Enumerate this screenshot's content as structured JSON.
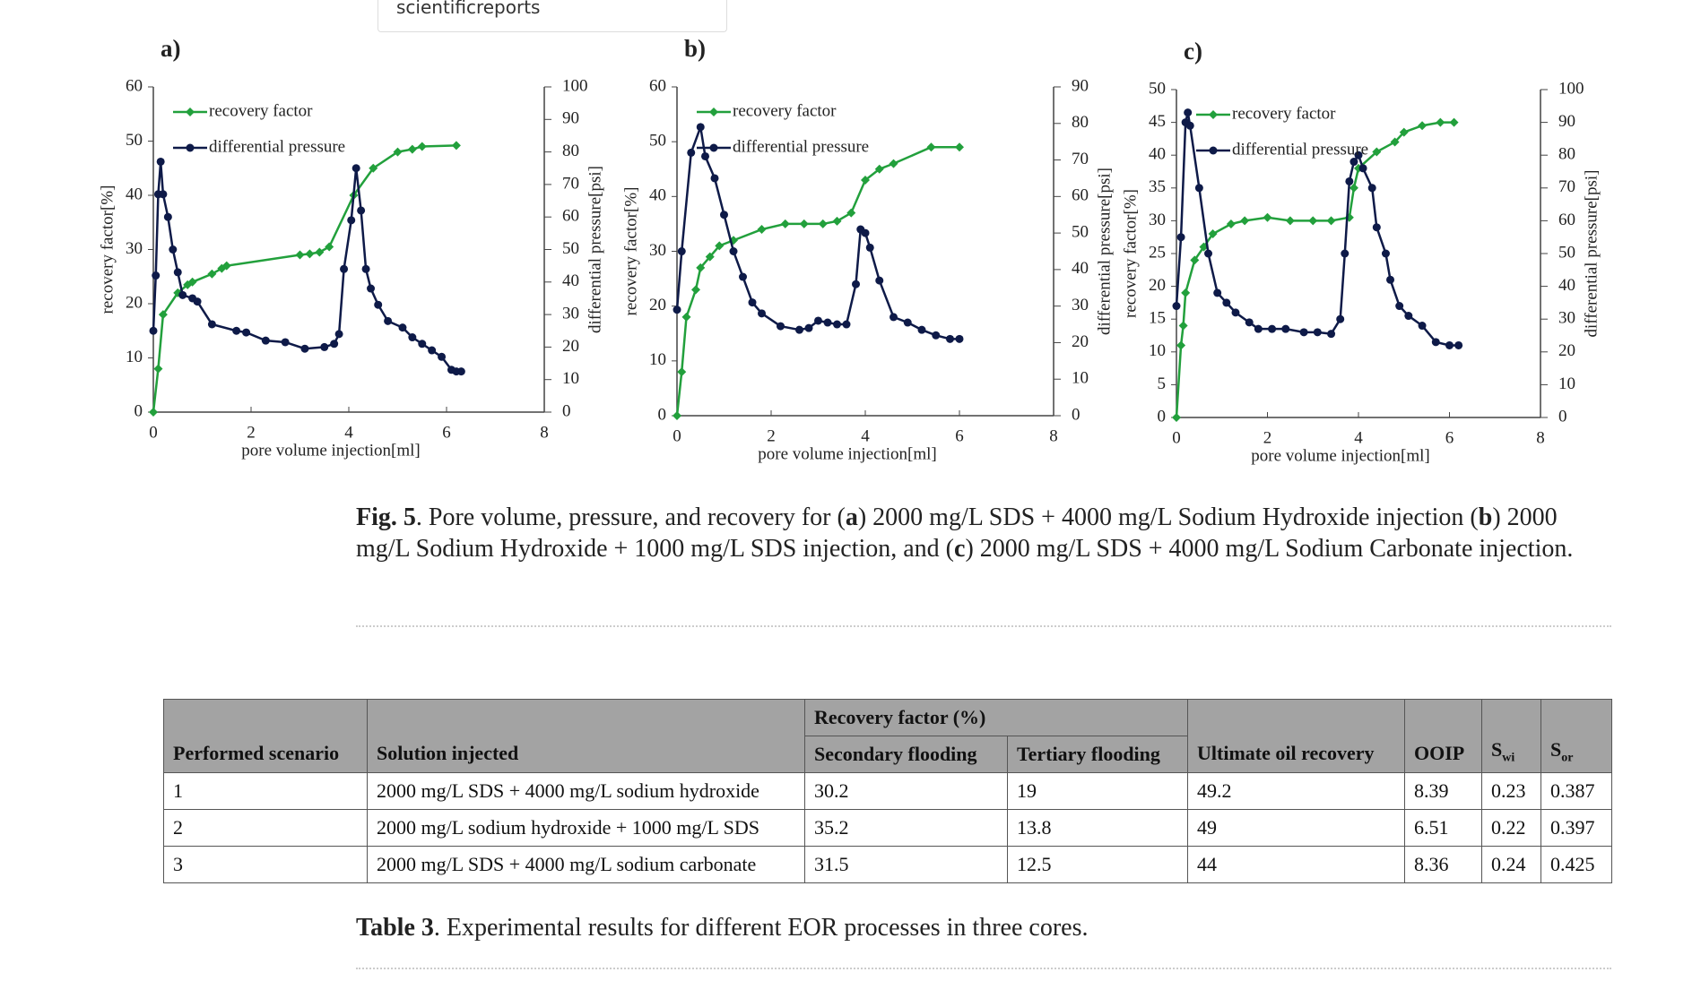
{
  "header": {
    "source": "scientificreports"
  },
  "chart_data": [
    {
      "type": "line",
      "panel": "a)",
      "xlabel": "pore volume injection[ml]",
      "ylabel": "recovery factor[%]",
      "y2label": "differential pressure[psi]",
      "xlim": [
        0,
        8
      ],
      "xticks": [
        0,
        2,
        4,
        6,
        8
      ],
      "ylim": [
        0,
        60
      ],
      "yticks": [
        0,
        10,
        20,
        30,
        40,
        50,
        60
      ],
      "y2lim": [
        0,
        100
      ],
      "y2ticks": [
        0,
        10,
        20,
        30,
        40,
        50,
        60,
        70,
        80,
        90,
        100
      ],
      "legend": "upper left",
      "series": [
        {
          "name": "recovery factor",
          "color": "#22a03c",
          "marker": "diamond",
          "x": [
            0,
            0.1,
            0.2,
            0.5,
            0.7,
            0.8,
            1.2,
            1.4,
            1.5,
            3,
            3.2,
            3.4,
            3.6,
            4.1,
            4.5,
            5,
            5.3,
            5.5,
            6.2
          ],
          "values": [
            0,
            8,
            18,
            22,
            23.5,
            24,
            25.5,
            26.5,
            27,
            29,
            29.2,
            29.5,
            30.5,
            40,
            45,
            48,
            48.5,
            49,
            49.2
          ]
        },
        {
          "name": "differential pressure",
          "color": "#0e1a48",
          "marker": "circle",
          "axis": "y2",
          "x": [
            0,
            0.05,
            0.1,
            0.15,
            0.2,
            0.3,
            0.4,
            0.5,
            0.6,
            0.8,
            0.9,
            1.2,
            1.7,
            1.9,
            2.3,
            2.7,
            3.1,
            3.5,
            3.7,
            3.8,
            3.9,
            4.05,
            4.15,
            4.25,
            4.35,
            4.45,
            4.6,
            4.8,
            5.1,
            5.3,
            5.5,
            5.7,
            5.9,
            6.1,
            6.2,
            6.3
          ],
          "values": [
            25,
            42,
            67,
            77,
            67,
            60,
            50,
            43,
            36,
            35,
            34,
            27,
            25,
            24.5,
            22,
            21.5,
            19.5,
            20,
            21,
            24,
            44,
            59,
            75,
            62,
            44,
            38,
            33,
            28,
            26,
            23,
            21,
            19,
            17,
            13,
            12.5,
            12.5
          ]
        }
      ]
    },
    {
      "type": "line",
      "panel": "b)",
      "xlabel": "pore volume injection[ml]",
      "ylabel": "recovery factor[%]",
      "y2label": "differential pressure[psi]",
      "xlim": [
        0,
        8
      ],
      "xticks": [
        0,
        2,
        4,
        6,
        8
      ],
      "ylim": [
        0,
        60
      ],
      "yticks": [
        0,
        10,
        20,
        30,
        40,
        50,
        60
      ],
      "y2lim": [
        0,
        90
      ],
      "y2ticks": [
        0,
        10,
        20,
        30,
        40,
        50,
        60,
        70,
        80,
        90
      ],
      "legend": "upper left",
      "series": [
        {
          "name": "recovery factor",
          "color": "#22a03c",
          "marker": "diamond",
          "x": [
            0,
            0.1,
            0.2,
            0.4,
            0.5,
            0.7,
            0.9,
            1.2,
            1.8,
            2.3,
            2.7,
            3.1,
            3.4,
            3.7,
            4,
            4.3,
            4.6,
            5.4,
            6
          ],
          "values": [
            0,
            8,
            18,
            23,
            27,
            29,
            31,
            32,
            34,
            35,
            35,
            35,
            35.5,
            37,
            43,
            45,
            46,
            49,
            49
          ]
        },
        {
          "name": "differential pressure",
          "color": "#0e1a48",
          "marker": "circle",
          "axis": "y2",
          "x": [
            0,
            0.1,
            0.3,
            0.5,
            0.6,
            0.8,
            1,
            1.2,
            1.4,
            1.6,
            1.8,
            2.2,
            2.6,
            2.8,
            3,
            3.2,
            3.4,
            3.6,
            3.8,
            3.9,
            4,
            4.1,
            4.3,
            4.6,
            4.9,
            5.2,
            5.5,
            5.8,
            6
          ],
          "values": [
            29,
            45,
            72,
            79,
            71,
            65,
            55,
            45,
            38,
            31,
            28,
            24.5,
            23.5,
            24,
            26,
            25.5,
            25,
            25,
            36,
            51,
            50,
            46,
            37,
            27,
            25.5,
            23.5,
            22,
            21,
            21
          ]
        }
      ]
    },
    {
      "type": "line",
      "panel": "c)",
      "xlabel": "pore volume injection[ml]",
      "ylabel": "recovery factor[%]",
      "y2label": "differential pressure[psi]",
      "xlim": [
        0,
        8
      ],
      "xticks": [
        0,
        2,
        4,
        6,
        8
      ],
      "ylim": [
        0,
        50
      ],
      "yticks": [
        0,
        5,
        10,
        15,
        20,
        25,
        30,
        35,
        40,
        45,
        50
      ],
      "y2lim": [
        0,
        100
      ],
      "y2ticks": [
        0,
        10,
        20,
        30,
        40,
        50,
        60,
        70,
        80,
        90,
        100
      ],
      "legend": "upper left",
      "series": [
        {
          "name": "recovery factor",
          "color": "#22a03c",
          "marker": "diamond",
          "x": [
            0,
            0.1,
            0.15,
            0.2,
            0.4,
            0.6,
            0.8,
            1.2,
            1.5,
            2,
            2.5,
            3,
            3.4,
            3.8,
            3.9,
            4,
            4.4,
            4.8,
            5,
            5.4,
            5.8,
            6.1
          ],
          "values": [
            0,
            11,
            14,
            19,
            24,
            26,
            28,
            29.5,
            30,
            30.5,
            30,
            30,
            30,
            30.5,
            35,
            38,
            40.5,
            42,
            43.5,
            44.5,
            45,
            45
          ]
        },
        {
          "name": "differential pressure",
          "color": "#0e1a48",
          "marker": "circle",
          "axis": "y2",
          "x": [
            0,
            0.1,
            0.2,
            0.25,
            0.3,
            0.5,
            0.7,
            0.9,
            1.1,
            1.3,
            1.6,
            1.8,
            2.1,
            2.4,
            2.8,
            3.1,
            3.4,
            3.6,
            3.7,
            3.8,
            3.9,
            4,
            4.1,
            4.3,
            4.4,
            4.6,
            4.7,
            4.9,
            5.1,
            5.4,
            5.7,
            6,
            6.2
          ],
          "values": [
            34,
            55,
            90,
            93,
            89,
            70,
            50,
            38,
            35,
            32,
            29,
            27,
            27,
            27,
            26,
            26,
            25.5,
            30,
            50,
            72,
            78,
            80,
            76,
            70,
            58,
            50,
            42,
            34,
            31,
            28,
            23,
            22,
            22
          ]
        }
      ]
    }
  ],
  "caption": [
    {
      "text": "Fig. 5",
      "bold": true
    },
    {
      "text": ".  Pore volume, pressure, and recovery for (",
      "bold": false
    },
    {
      "text": "a",
      "bold": true
    },
    {
      "text": ") 2000 mg/L SDS + 4000 mg/L Sodium Hydroxide injection (",
      "bold": false
    },
    {
      "text": "b",
      "bold": true
    },
    {
      "text": ") 2000 mg/L Sodium Hydroxide + 1000 mg/L SDS injection, and (",
      "bold": false
    },
    {
      "text": "c",
      "bold": true
    },
    {
      "text": ") 2000 mg/L SDS + 4000 mg/L Sodium Carbonate injection.",
      "bold": false
    }
  ],
  "table": {
    "group_header": "Recovery factor (%)",
    "columns": [
      "Performed scenario",
      "Solution injected",
      "Secondary flooding",
      "Tertiary flooding",
      "Ultimate oil recovery",
      "OOIP",
      {
        "main": "S",
        "sub": "wi"
      },
      {
        "main": "S",
        "sub": "or"
      }
    ],
    "rows": [
      [
        1,
        "2000 mg/L SDS + 4000 mg/L sodium hydroxide",
        30.2,
        19,
        49.2,
        8.39,
        0.23,
        0.387
      ],
      [
        2,
        "2000 mg/L sodium hydroxide + 1000 mg/L SDS",
        35.2,
        13.8,
        49,
        6.51,
        0.22,
        0.397
      ],
      [
        3,
        "2000 mg/L SDS + 4000 mg/L sodium carbonate",
        31.5,
        12.5,
        44,
        8.36,
        0.24,
        0.425
      ]
    ]
  },
  "table_caption": [
    {
      "text": "Table 3",
      "bold": true
    },
    {
      "text": ".  Experimental results for different EOR processes in three cores.",
      "bold": false
    }
  ]
}
